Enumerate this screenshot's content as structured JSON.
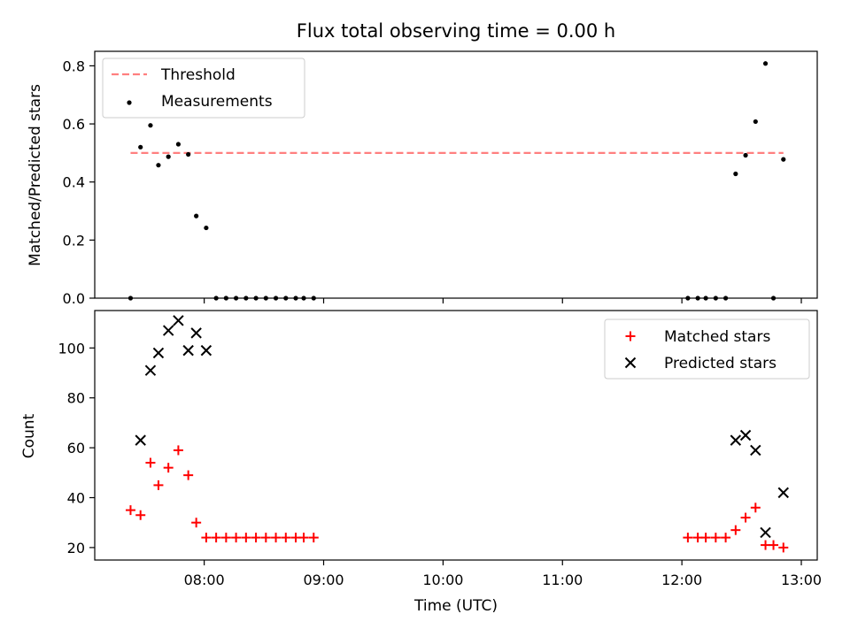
{
  "figure": {
    "title": "Flux total observing time = 0.00 h"
  },
  "chart_data": [
    {
      "type": "scatter",
      "panel": "top",
      "ylabel": "Matched/Predicted stars",
      "xlim": [
        "07:05",
        "13:08"
      ],
      "ylim": [
        0,
        0.85
      ],
      "yticks": [
        0.0,
        0.2,
        0.4,
        0.6,
        0.8
      ],
      "ytick_labels": [
        "0.0",
        "0.2",
        "0.4",
        "0.6",
        "0.8"
      ],
      "legend": "top-left",
      "threshold": {
        "name": "Threshold",
        "value": 0.5,
        "x_range": [
          "07:23",
          "12:51"
        ],
        "color": "#ff7f7f"
      },
      "series": [
        {
          "name": "Measurements",
          "color": "#000000",
          "marker": "dot",
          "points": [
            [
              "07:23",
              0.0
            ],
            [
              "07:28",
              0.52
            ],
            [
              "07:33",
              0.595
            ],
            [
              "07:37",
              0.458
            ],
            [
              "07:42",
              0.487
            ],
            [
              "07:47",
              0.53
            ],
            [
              "07:52",
              0.495
            ],
            [
              "07:56",
              0.283
            ],
            [
              "08:01",
              0.242
            ],
            [
              "08:06",
              0.0
            ],
            [
              "08:11",
              0.0
            ],
            [
              "08:16",
              0.0
            ],
            [
              "08:21",
              0.0
            ],
            [
              "08:26",
              0.0
            ],
            [
              "08:31",
              0.0
            ],
            [
              "08:36",
              0.0
            ],
            [
              "08:41",
              0.0
            ],
            [
              "08:46",
              0.0
            ],
            [
              "08:50",
              0.0
            ],
            [
              "08:55",
              0.0
            ],
            [
              "12:03",
              0.0
            ],
            [
              "12:08",
              0.0
            ],
            [
              "12:12",
              0.0
            ],
            [
              "12:17",
              0.0
            ],
            [
              "12:22",
              0.0
            ],
            [
              "12:27",
              0.428
            ],
            [
              "12:32",
              0.492
            ],
            [
              "12:37",
              0.608
            ],
            [
              "12:42",
              0.808
            ],
            [
              "12:46",
              0.0
            ],
            [
              "12:51",
              0.478
            ]
          ]
        }
      ]
    },
    {
      "type": "scatter",
      "panel": "bottom",
      "xlabel": "Time (UTC)",
      "ylabel": "Count",
      "xlim": [
        "07:05",
        "13:08"
      ],
      "ylim": [
        15,
        115
      ],
      "xticks": [
        "08:00",
        "09:00",
        "10:00",
        "11:00",
        "12:00",
        "13:00"
      ],
      "yticks": [
        20,
        40,
        60,
        80,
        100
      ],
      "ytick_labels": [
        "20",
        "40",
        "60",
        "80",
        "100"
      ],
      "legend": "top-right",
      "series": [
        {
          "name": "Matched stars",
          "color": "#ff0000",
          "marker": "plus",
          "points": [
            [
              "07:23",
              35
            ],
            [
              "07:28",
              33
            ],
            [
              "07:33",
              54
            ],
            [
              "07:37",
              45
            ],
            [
              "07:42",
              52
            ],
            [
              "07:47",
              59
            ],
            [
              "07:52",
              49
            ],
            [
              "07:56",
              30
            ],
            [
              "08:01",
              24
            ],
            [
              "08:06",
              24
            ],
            [
              "08:11",
              24
            ],
            [
              "08:16",
              24
            ],
            [
              "08:21",
              24
            ],
            [
              "08:26",
              24
            ],
            [
              "08:31",
              24
            ],
            [
              "08:36",
              24
            ],
            [
              "08:41",
              24
            ],
            [
              "08:46",
              24
            ],
            [
              "08:50",
              24
            ],
            [
              "08:55",
              24
            ],
            [
              "12:03",
              24
            ],
            [
              "12:08",
              24
            ],
            [
              "12:12",
              24
            ],
            [
              "12:17",
              24
            ],
            [
              "12:22",
              24
            ],
            [
              "12:27",
              27
            ],
            [
              "12:32",
              32
            ],
            [
              "12:37",
              36
            ],
            [
              "12:42",
              21
            ],
            [
              "12:46",
              21
            ],
            [
              "12:51",
              20
            ]
          ]
        },
        {
          "name": "Predicted stars",
          "color": "#000000",
          "marker": "x",
          "points": [
            [
              "07:28",
              63
            ],
            [
              "07:33",
              91
            ],
            [
              "07:37",
              98
            ],
            [
              "07:42",
              107
            ],
            [
              "07:47",
              111
            ],
            [
              "07:52",
              99
            ],
            [
              "07:56",
              106
            ],
            [
              "08:01",
              99
            ],
            [
              "12:27",
              63
            ],
            [
              "12:32",
              65
            ],
            [
              "12:37",
              59
            ],
            [
              "12:42",
              26
            ],
            [
              "12:51",
              42
            ]
          ]
        }
      ]
    }
  ]
}
